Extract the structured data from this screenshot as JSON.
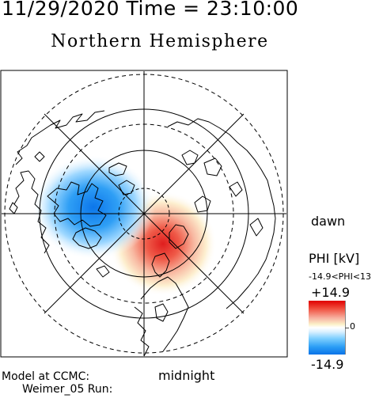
{
  "header": {
    "timestamp": "11/29/2020 Time = 23:10:00",
    "hemisphere": "Northern Hemisphere"
  },
  "labels": {
    "dawn": "dawn",
    "midnight": "midnight"
  },
  "credit": {
    "line1": "Model at CCMC:",
    "line2": "Weimer_05 Run:"
  },
  "colorbar": {
    "title": "PHI [kV]",
    "range": "-14.9<PHI<13",
    "max": "+14.9",
    "zero": "0",
    "min": "-14.9",
    "colors": {
      "positive": "#e00000",
      "neutral": "#ffffff",
      "negative": "#0b74e8"
    }
  }
}
